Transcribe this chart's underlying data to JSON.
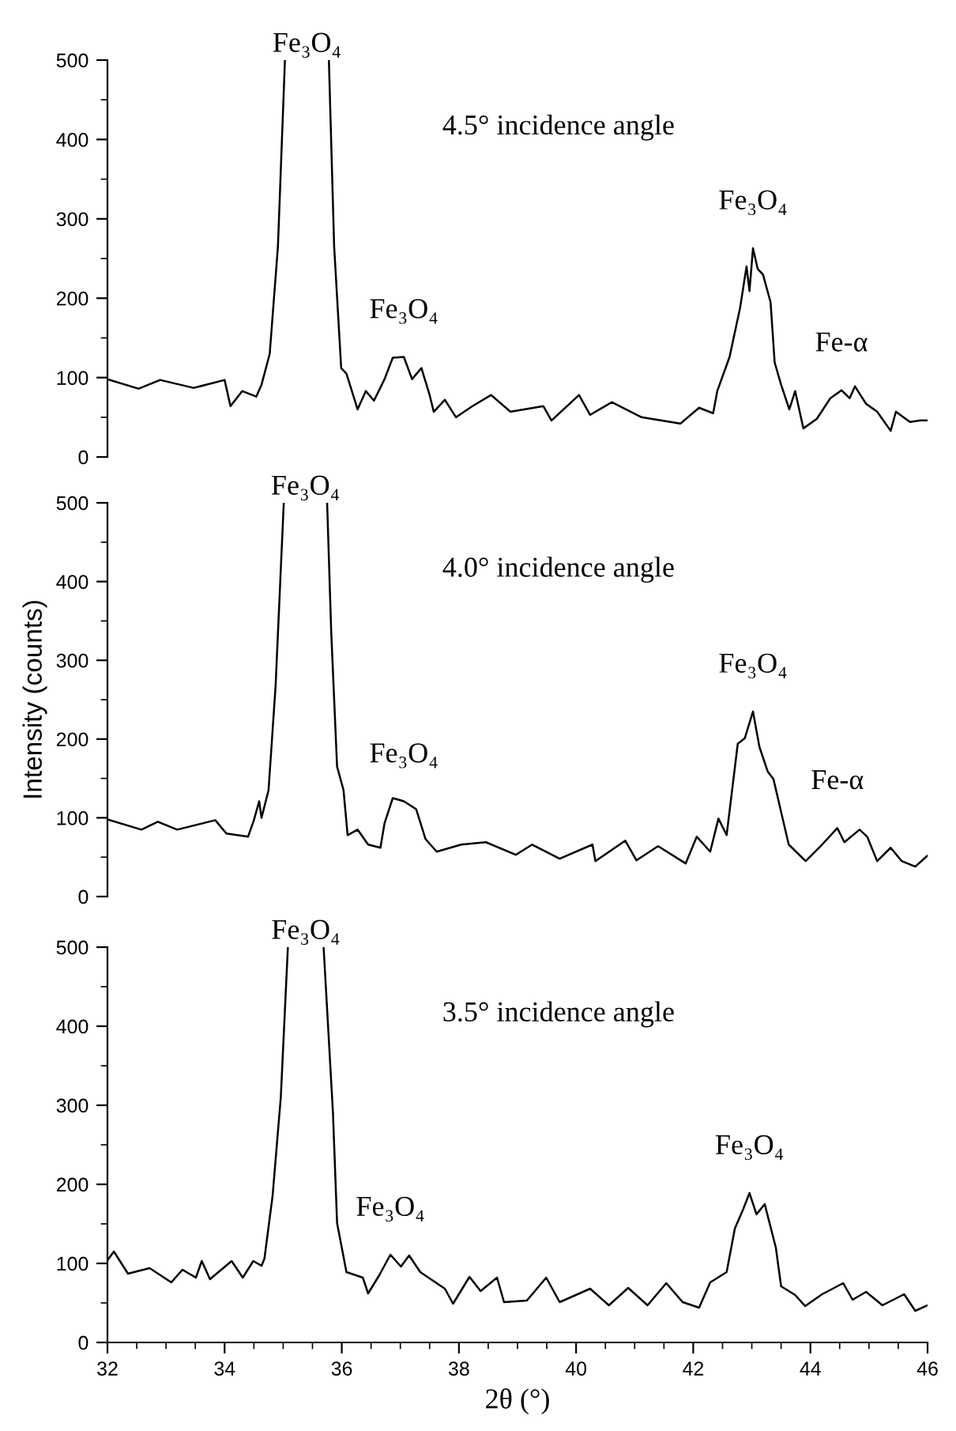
{
  "chart_data": [
    {
      "type": "line",
      "tick_labels": "y",
      "grid": false,
      "legend": false,
      "xlim": [
        32,
        46
      ],
      "ylim": [
        0,
        500
      ],
      "yticks": [
        0,
        {
          "value": 50,
          "label": null
        },
        100,
        {
          "value": 150,
          "label": null
        },
        200,
        {
          "value": 250,
          "label": null
        },
        300,
        {
          "value": 350,
          "label": null
        },
        400,
        {
          "value": 450,
          "label": null
        },
        500
      ],
      "series": [
        {
          "color": "#000000",
          "x": [
            32,
            32.53,
            32.9,
            33.47,
            34.0,
            34.1,
            34.3,
            34.54,
            34.63,
            34.77,
            34.91,
            35.03,
            35.4,
            35.78,
            35.87,
            35.99,
            36.08,
            36.27,
            36.41,
            36.55,
            36.73,
            36.87,
            37.06,
            37.2,
            37.36,
            37.5,
            37.57,
            37.76,
            37.95,
            38.23,
            38.55,
            38.88,
            39.44,
            39.58,
            40.05,
            40.24,
            40.61,
            41.12,
            41.78,
            42.1,
            42.34,
            42.41,
            42.62,
            42.8,
            42.91,
            42.96,
            43.02,
            43.1,
            43.19,
            43.32,
            43.39,
            43.5,
            43.64,
            43.74,
            43.88,
            44.11,
            44.34,
            44.53,
            44.67,
            44.76,
            44.95,
            45.14,
            45.37,
            45.46,
            45.7,
            45.88,
            46
          ],
          "values": [
            98,
            86,
            97,
            87,
            97,
            64,
            83,
            76,
            91,
            130,
            265,
            500,
            null,
            500,
            265,
            112,
            105,
            60,
            83,
            71,
            98,
            125,
            126,
            98,
            112,
            78,
            57,
            72,
            50,
            64,
            78,
            57,
            64,
            46,
            78,
            53,
            69,
            50,
            42,
            62,
            55,
            83,
            126,
            188,
            240,
            209,
            263,
            237,
            230,
            195,
            119,
            91,
            60,
            83,
            36,
            48,
            74,
            84,
            74,
            89,
            67,
            57,
            33,
            57,
            44,
            46,
            46
          ]
        }
      ],
      "annotations": [
        "Fe₃O₄",
        {
          "text": "Fe₃O₄",
          "x": 37.06,
          "y": 126
        },
        {
          "text": "Fe₃O₄",
          "x": 43.02,
          "y": 263
        },
        {
          "text": "Fe-α",
          "x": 44.53,
          "y": 84
        },
        "4.5° incidence angle"
      ]
    },
    {
      "type": "line",
      "tick_labels": "y",
      "grid": false,
      "legend": false,
      "ylabel": "Intensity (counts)",
      "xlim": [
        32,
        46
      ],
      "ylim": [
        0,
        500
      ],
      "yticks": [
        0,
        {
          "value": 50,
          "label": null
        },
        100,
        {
          "value": 150,
          "label": null
        },
        200,
        {
          "value": 250,
          "label": null
        },
        300,
        {
          "value": 350,
          "label": null
        },
        400,
        {
          "value": 450,
          "label": null
        },
        500
      ],
      "series": [
        {
          "color": "#000000",
          "x": [
            32,
            32.58,
            32.86,
            33.19,
            33.84,
            34.03,
            34.4,
            34.5,
            34.59,
            34.63,
            34.75,
            34.87,
            35.01,
            35.4,
            35.75,
            35.82,
            35.92,
            36.03,
            36.1,
            36.27,
            36.45,
            36.66,
            36.73,
            36.87,
            37.06,
            37.27,
            37.43,
            37.62,
            38.04,
            38.46,
            38.97,
            39.25,
            39.72,
            40.28,
            40.33,
            40.84,
            41.03,
            41.4,
            41.87,
            42.06,
            42.29,
            42.43,
            42.57,
            42.76,
            42.88,
            43.02,
            43.13,
            43.27,
            43.37,
            43.63,
            43.92,
            44.2,
            44.46,
            44.58,
            44.84,
            44.97,
            45.14,
            45.37,
            45.56,
            45.79,
            46
          ],
          "values": [
            98,
            85,
            95,
            85,
            97,
            80,
            76,
            97,
            121,
            100,
            135,
            267,
            500,
            null,
            500,
            336,
            165,
            135,
            78,
            85,
            66,
            62,
            93,
            125,
            121,
            111,
            73,
            57,
            66,
            69,
            53,
            66,
            48,
            66,
            45,
            71,
            46,
            64,
            42,
            76,
            57,
            99,
            78,
            194,
            201,
            235,
            190,
            159,
            149,
            66,
            45,
            66,
            87,
            69,
            85,
            76,
            45,
            62,
            45,
            38,
            52
          ]
        }
      ],
      "annotations": [
        "Fe₃O₄",
        {
          "text": "Fe₃O₄",
          "x": 37.06,
          "y": 121
        },
        {
          "text": "Fe₃O₄",
          "x": 43.02,
          "y": 235
        },
        {
          "text": "Fe-α",
          "x": 44.46,
          "y": 87
        },
        "4.0° incidence angle"
      ]
    },
    {
      "type": "line",
      "grid": false,
      "legend": false,
      "xlabel": "2θ (°)",
      "xlim": [
        32,
        46
      ],
      "ylim": [
        0,
        500
      ],
      "xticks": [
        32,
        {
          "value": 32.5,
          "label": null
        },
        {
          "value": 33,
          "label": null
        },
        {
          "value": 33.5,
          "label": null
        },
        34,
        {
          "value": 34.5,
          "label": null
        },
        {
          "value": 35,
          "label": null
        },
        {
          "value": 35.5,
          "label": null
        },
        36,
        {
          "value": 36.5,
          "label": null
        },
        {
          "value": 37,
          "label": null
        },
        {
          "value": 37.5,
          "label": null
        },
        38,
        {
          "value": 38.5,
          "label": null
        },
        {
          "value": 39,
          "label": null
        },
        {
          "value": 39.5,
          "label": null
        },
        40,
        {
          "value": 40.5,
          "label": null
        },
        {
          "value": 41,
          "label": null
        },
        {
          "value": 41.5,
          "label": null
        },
        42,
        {
          "value": 42.5,
          "label": null
        },
        {
          "value": 43,
          "label": null
        },
        {
          "value": 43.5,
          "label": null
        },
        44,
        {
          "value": 44.5,
          "label": null
        },
        {
          "value": 45,
          "label": null
        },
        {
          "value": 45.5,
          "label": null
        },
        46
      ],
      "yticks": [
        0,
        {
          "value": 50,
          "label": null
        },
        100,
        {
          "value": 150,
          "label": null
        },
        200,
        {
          "value": 250,
          "label": null
        },
        300,
        {
          "value": 350,
          "label": null
        },
        400,
        {
          "value": 450,
          "label": null
        },
        500
      ],
      "series": [
        {
          "color": "#000000",
          "x": [
            32,
            32.11,
            32.35,
            32.72,
            33.09,
            33.28,
            33.51,
            33.61,
            33.75,
            34.12,
            34.31,
            34.49,
            34.63,
            34.68,
            34.82,
            34.96,
            35.08,
            35.4,
            35.69,
            35.85,
            35.92,
            36.08,
            36.36,
            36.45,
            36.64,
            36.83,
            37.01,
            37.15,
            37.34,
            37.76,
            37.9,
            38.18,
            38.37,
            38.65,
            38.77,
            39.16,
            39.49,
            39.72,
            40.24,
            40.56,
            40.89,
            41.22,
            41.54,
            41.82,
            42.1,
            42.29,
            42.57,
            42.71,
            42.85,
            42.96,
            43.08,
            43.22,
            43.41,
            43.5,
            43.74,
            43.91,
            44.2,
            44.56,
            44.72,
            44.95,
            45.23,
            45.6,
            45.79,
            46
          ],
          "values": [
            104,
            115,
            87,
            94,
            76,
            92,
            82,
            103,
            80,
            103,
            82,
            103,
            97,
            106,
            186,
            311,
            500,
            null,
            500,
            290,
            151,
            89,
            82,
            62,
            85,
            111,
            96,
            110,
            89,
            68,
            49,
            83,
            65,
            82,
            51,
            53,
            82,
            51,
            68,
            47,
            69,
            47,
            75,
            51,
            44,
            76,
            89,
            144,
            168,
            189,
            162,
            175,
            120,
            71,
            60,
            46,
            61,
            75,
            54,
            64,
            47,
            61,
            40,
            47
          ]
        }
      ],
      "annotations": [
        "Fe₃O₄",
        {
          "text": "Fe₃O₄",
          "x": 36.83,
          "y": 111
        },
        {
          "text": "Fe₃O₄",
          "x": 42.96,
          "y": 189
        },
        "3.5° incidence angle"
      ]
    }
  ]
}
